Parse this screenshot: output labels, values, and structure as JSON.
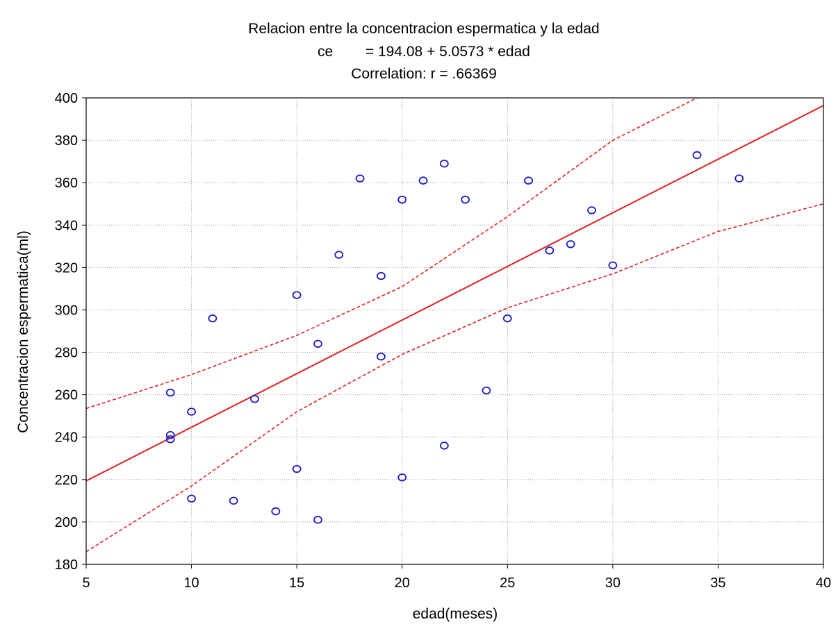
{
  "chart_data": {
    "type": "scatter",
    "title_lines": [
      "Relacion entre la concentracion espermatica y la edad",
      "ce        = 194.08 + 5.0573 * edad",
      "Correlation: r = .66369"
    ],
    "xlabel": "edad(meses)",
    "ylabel": "Concentracion espermatica(ml)",
    "xlim": [
      5,
      40
    ],
    "ylim": [
      180,
      400
    ],
    "x_ticks": [
      5,
      10,
      15,
      20,
      25,
      30,
      35,
      40
    ],
    "y_ticks": [
      180,
      200,
      220,
      240,
      260,
      280,
      300,
      320,
      340,
      360,
      380,
      400
    ],
    "grid": true,
    "points": [
      [
        9,
        261
      ],
      [
        9,
        241
      ],
      [
        9,
        239
      ],
      [
        10,
        252
      ],
      [
        10,
        211
      ],
      [
        11,
        296
      ],
      [
        12,
        210
      ],
      [
        13,
        258
      ],
      [
        14,
        205
      ],
      [
        15,
        307
      ],
      [
        15,
        225
      ],
      [
        16,
        284
      ],
      [
        16,
        201
      ],
      [
        17,
        326
      ],
      [
        18,
        362
      ],
      [
        19,
        316
      ],
      [
        19,
        278
      ],
      [
        20,
        352
      ],
      [
        20,
        221
      ],
      [
        21,
        361
      ],
      [
        22,
        369
      ],
      [
        22,
        236
      ],
      [
        23,
        352
      ],
      [
        24,
        262
      ],
      [
        25,
        296
      ],
      [
        26,
        361
      ],
      [
        27,
        328
      ],
      [
        28,
        331
      ],
      [
        29,
        347
      ],
      [
        30,
        321
      ],
      [
        34,
        373
      ],
      [
        36,
        362
      ]
    ],
    "regression": {
      "intercept": 194.08,
      "slope": 5.0573
    },
    "confidence_band": {
      "upper": [
        [
          5,
          253.5
        ],
        [
          10,
          269.5
        ],
        [
          15,
          288
        ],
        [
          20,
          311
        ],
        [
          25,
          344
        ],
        [
          30,
          380
        ],
        [
          34,
          400
        ]
      ],
      "lower": [
        [
          5,
          186
        ],
        [
          10,
          217
        ],
        [
          15,
          252
        ],
        [
          20,
          279
        ],
        [
          25,
          301
        ],
        [
          30,
          317
        ],
        [
          35,
          337
        ],
        [
          40,
          350
        ]
      ]
    },
    "colors": {
      "points": "#1c1cc8",
      "regression": "#e02020",
      "band": "#e02020",
      "grid": "#a0a0a0",
      "axes": "#000000"
    }
  }
}
